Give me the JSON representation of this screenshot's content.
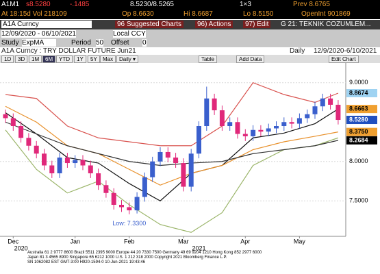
{
  "ui": {
    "row1": {
      "ticker": "A1M1",
      "last": "s8.5280",
      "change": "-.1485",
      "bid_ask": "8.5230/8.5265",
      "size": "1×3",
      "prev": "Prev 8.6765"
    },
    "row2": {
      "time_vol": "At 18:15d  Vol  218109",
      "open": "Op  8.6630",
      "high": "Hi  8.6687",
      "low": "Lo  8.5150",
      "open_int": "OpenInt  901869"
    },
    "row3": {
      "security": "A1A Curncy",
      "suggested": "96 Suggested Charts",
      "actions": "96) Actions",
      "edit": "97) Edit",
      "chart_name": "G 21: TEKNIK COZUMLEM..."
    },
    "row4": {
      "range": "12/09/2020 - 06/10/2021",
      "currency": "Local CCY"
    },
    "row5": {
      "study_label": "Study",
      "study": "ExpMA",
      "period_label": "Period",
      "period": "50",
      "offset_label": "Offset",
      "offset": "0"
    },
    "row6": {
      "description": "A1A Curncy : TRY DOLLAR FUTURE Jun21",
      "frequency": "Daily",
      "dates": "12/9/2020-6/10/2021"
    },
    "toolbar": [
      "1D",
      "3D",
      "1M",
      "6M",
      "YTD",
      "1Y",
      "5Y",
      "Max",
      "Daily ▾",
      "Table",
      "Add Data",
      "Edit Chart"
    ],
    "price_boxes": [
      "8.8674",
      "8.6663",
      "8.5280",
      "8.3750",
      "8.2684"
    ],
    "footer": [
      "Australia 61 2 9777 8600 Brazil 5511 2395 9000 Europe 44 20 7330 7500 Germany 49 69 9204 1210 Hong Kong 852 2977 6000",
      "Japan 81 3 4565 8900        Singapore 65 6212 1000        U.S. 1 212 318 2000        Copyright 2021 Bloomberg Finance L.P.",
      "SN 1062082 EST  GMT-3:00 H920-1594-0 10-Jun-2021 19:43:46"
    ]
  },
  "chart_data": {
    "type": "candlestick",
    "annotation": "Low: 7.3300",
    "categories": [
      null,
      "Dec",
      null,
      null,
      null,
      null,
      null,
      null,
      null,
      "Jan",
      null,
      null,
      null,
      null,
      null,
      null,
      "Feb",
      null,
      null,
      null,
      null,
      null,
      null,
      "Mar",
      null,
      null,
      null,
      null,
      null,
      null,
      null,
      "Apr",
      null,
      null,
      null,
      null,
      null,
      null,
      "May",
      null,
      null,
      null,
      null,
      null
    ],
    "year_labels": [
      null,
      null,
      "2020",
      null,
      null,
      null,
      null,
      null,
      null,
      null,
      null,
      null,
      null,
      null,
      null,
      null,
      null,
      null,
      null,
      null,
      null,
      null,
      null,
      null,
      null,
      "2021",
      null,
      null,
      null,
      null,
      null,
      null,
      null,
      null,
      null,
      null,
      null,
      null,
      null,
      null,
      null,
      null,
      null,
      null
    ],
    "open": [
      8.6,
      8.55,
      8.45,
      8.3,
      8.2,
      8.1,
      7.95,
      7.85,
      8.05,
      7.98,
      8.02,
      7.95,
      7.85,
      7.7,
      7.6,
      7.45,
      7.42,
      7.38,
      7.55,
      7.8,
      8.0,
      8.12,
      8.05,
      7.98,
      7.68,
      8.1,
      8.45,
      8.8,
      8.65,
      8.45,
      8.5,
      8.35,
      8.32,
      8.4,
      8.38,
      8.42,
      8.45,
      8.5,
      8.48,
      8.55,
      8.6,
      8.7,
      8.8,
      8.72
    ],
    "high": [
      8.66,
      8.61,
      8.51,
      8.36,
      8.26,
      8.16,
      8.01,
      8.11,
      8.11,
      8.08,
      8.08,
      8.01,
      7.91,
      7.76,
      7.66,
      7.51,
      7.48,
      7.61,
      7.86,
      8.06,
      8.18,
      8.18,
      8.11,
      8.04,
      8.16,
      8.51,
      8.95,
      8.86,
      8.71,
      8.56,
      8.56,
      8.41,
      8.46,
      8.46,
      8.48,
      8.51,
      8.56,
      8.56,
      8.61,
      8.66,
      8.76,
      8.86,
      8.86,
      8.78
    ],
    "low": [
      8.49,
      8.39,
      8.24,
      8.14,
      8.04,
      7.89,
      7.79,
      7.79,
      7.92,
      7.92,
      7.89,
      7.79,
      7.64,
      7.54,
      7.39,
      7.36,
      7.33,
      7.34,
      7.49,
      7.74,
      7.94,
      7.99,
      7.92,
      7.62,
      7.62,
      8.04,
      8.39,
      8.59,
      8.39,
      8.39,
      8.29,
      8.26,
      8.26,
      8.32,
      8.32,
      8.36,
      8.39,
      8.42,
      8.42,
      8.49,
      8.54,
      8.64,
      8.66,
      8.47
    ],
    "close": [
      8.55,
      8.45,
      8.3,
      8.2,
      8.1,
      7.95,
      7.85,
      8.05,
      7.98,
      8.02,
      7.95,
      7.85,
      7.7,
      7.6,
      7.45,
      7.42,
      7.38,
      7.55,
      7.8,
      8.0,
      8.12,
      8.05,
      7.98,
      7.68,
      8.1,
      8.45,
      8.8,
      8.65,
      8.45,
      8.5,
      8.35,
      8.32,
      8.4,
      8.38,
      8.42,
      8.45,
      8.5,
      8.48,
      8.55,
      8.6,
      8.7,
      8.8,
      8.72,
      8.528
    ],
    "up_color": "#3a5fcd",
    "down_color": "#e0287a",
    "lines": [
      {
        "color": "#d9534f",
        "x": [
          0,
          4,
          8,
          12,
          16,
          20,
          24,
          28,
          32,
          36,
          40,
          43
        ],
        "values": [
          8.85,
          8.8,
          8.45,
          8.3,
          8.25,
          8.2,
          8.2,
          8.45,
          9.0,
          8.85,
          8.75,
          8.8674
        ]
      },
      {
        "color": "#9bb56a",
        "x": [
          0,
          4,
          8,
          12,
          16,
          20,
          24,
          28,
          32,
          36,
          40,
          43
        ],
        "values": [
          8.4,
          7.9,
          7.6,
          7.75,
          7.45,
          7.2,
          7.1,
          7.35,
          7.95,
          8.15,
          8.2,
          8.3
        ]
      },
      {
        "color": "#111111",
        "x": [
          0,
          4,
          8,
          12,
          16,
          20,
          24,
          28,
          32,
          36,
          40,
          43
        ],
        "values": [
          8.62,
          8.35,
          8.05,
          7.98,
          7.72,
          7.5,
          7.85,
          7.95,
          8.3,
          8.36,
          8.48,
          8.6663
        ]
      },
      {
        "color": "#e8902a",
        "x": [
          0,
          4,
          8,
          12,
          16,
          20,
          24,
          28,
          32,
          36,
          40,
          43
        ],
        "values": [
          8.7,
          8.5,
          8.2,
          8.1,
          7.9,
          7.7,
          7.85,
          7.95,
          8.15,
          8.25,
          8.32,
          8.375
        ]
      },
      {
        "color": "#333333",
        "x": [
          0,
          4,
          8,
          12,
          16,
          20,
          24,
          28,
          32,
          36,
          40,
          43
        ],
        "values": [
          8.5,
          8.35,
          8.2,
          8.1,
          8.0,
          7.95,
          7.98,
          8.0,
          8.1,
          8.15,
          8.2,
          8.2684
        ]
      }
    ],
    "box_colors": [
      "#9fd3f2",
      "#f0a030",
      "#1f4fbf",
      "#f0a030",
      "#000000"
    ],
    "ylim": [
      7.05,
      9.25
    ],
    "yticks": [
      {
        "value": 7.5,
        "label": "7.5000"
      },
      {
        "value": 8,
        "label": "8.0000"
      },
      {
        "value": 9,
        "label": "9.0000"
      }
    ],
    "grid": true
  }
}
